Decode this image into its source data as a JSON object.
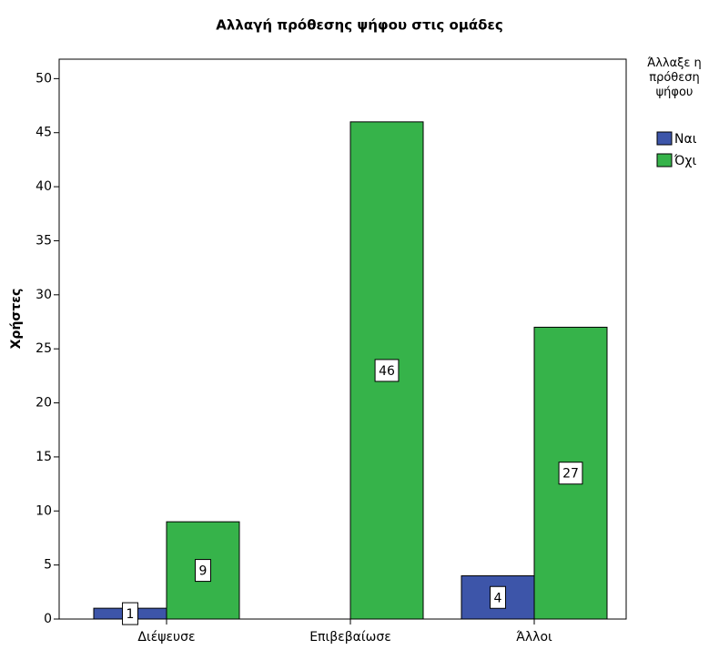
{
  "chart_data": {
    "type": "bar",
    "title": "Αλλαγή πρόθεσης ψήφου στις ομάδες",
    "y_label": "Χρήστες",
    "legend_title": "Άλλαξε η πρόθεση ψήφου",
    "legend": "right",
    "categories": [
      "Διέψευσε",
      "Επιβεβαίωσε",
      "Άλλοι"
    ],
    "series": [
      {
        "name": "Ναι",
        "color": "#3d55a9",
        "values": [
          1,
          null,
          4
        ]
      },
      {
        "name": "Όχι",
        "color": "#36b34a",
        "values": [
          9,
          46,
          27
        ]
      }
    ],
    "ylim": [
      0,
      51.8
    ],
    "yticks": [
      0,
      5,
      10,
      15,
      20,
      25,
      30,
      35,
      40,
      45,
      50
    ],
    "grid": false
  }
}
